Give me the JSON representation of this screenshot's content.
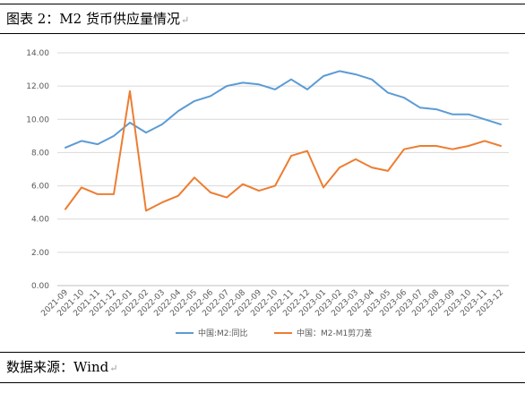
{
  "caption": {
    "title": "图表 2：M2 货币供应量情况",
    "source": "数据来源：Wind"
  },
  "chart_data": {
    "type": "line",
    "title": "",
    "xlabel": "",
    "ylabel": "",
    "ylim": [
      0,
      14
    ],
    "yticks": [
      "0.00",
      "2.00",
      "4.00",
      "6.00",
      "8.00",
      "10.00",
      "12.00",
      "14.00"
    ],
    "grid": "horizontal",
    "legend_position": "bottom",
    "categories": [
      "2021-09",
      "2021-10",
      "2021-11",
      "2021-12",
      "2022-01",
      "2022-02",
      "2022-03",
      "2022-04",
      "2022-05",
      "2022-06",
      "2022-07",
      "2022-08",
      "2022-09",
      "2022-10",
      "2022-11",
      "2022-12",
      "2023-01",
      "2023-02",
      "2023-03",
      "2023-04",
      "2023-05",
      "2023-06",
      "2023-07",
      "2023-08",
      "2023-09",
      "2023-10",
      "2023-11",
      "2023-12"
    ],
    "series": [
      {
        "name": "中国:M2:同比",
        "color": "#5b9bd5",
        "values": [
          8.3,
          8.7,
          8.5,
          9.0,
          9.8,
          9.2,
          9.7,
          10.5,
          11.1,
          11.4,
          12.0,
          12.2,
          12.1,
          11.8,
          12.4,
          11.8,
          12.6,
          12.9,
          12.7,
          12.4,
          11.6,
          11.3,
          10.7,
          10.6,
          10.3,
          10.3,
          10.0,
          9.7
        ]
      },
      {
        "name": "中国：M2-M1剪刀差",
        "color": "#ed7d31",
        "values": [
          4.6,
          5.9,
          5.5,
          5.5,
          11.7,
          4.5,
          5.0,
          5.4,
          6.5,
          5.6,
          5.3,
          6.1,
          5.7,
          6.0,
          7.8,
          8.1,
          5.9,
          7.1,
          7.6,
          7.1,
          6.9,
          8.2,
          8.4,
          8.4,
          8.2,
          8.4,
          8.7,
          8.4
        ]
      }
    ]
  }
}
